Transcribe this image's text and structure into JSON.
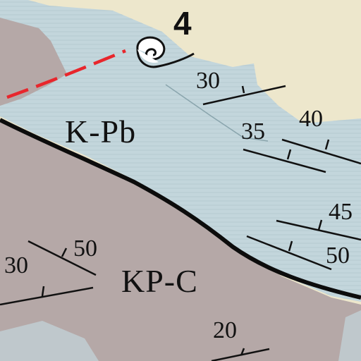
{
  "map": {
    "units": [
      {
        "code": "K-Pb",
        "color": "#c3d6dc"
      },
      {
        "code": "KP-C",
        "color": "#b5a8a7"
      }
    ],
    "background_color": "#ede7cc",
    "contact_line_color": "#0c0c0c",
    "fault_line_color": "#e8262c",
    "dip_values": [
      "30",
      "35",
      "40",
      "45",
      "50",
      "50",
      "30",
      "20"
    ],
    "locality_number": "4",
    "icons": [
      "swirl-symbol-icon"
    ]
  }
}
